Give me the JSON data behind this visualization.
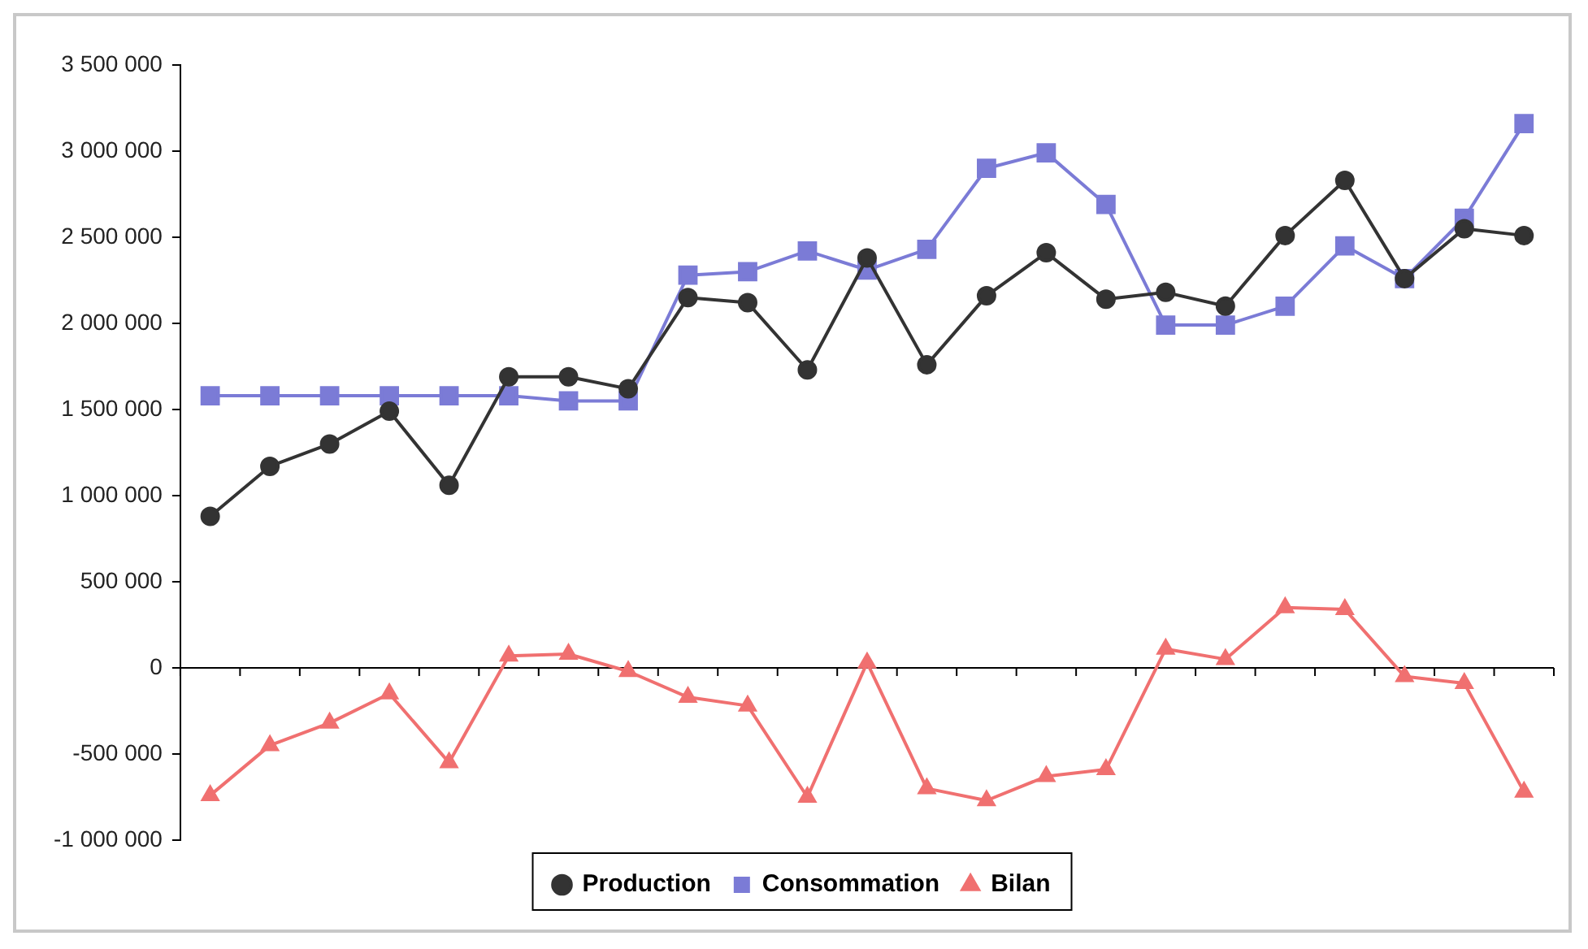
{
  "chart_data": {
    "type": "line",
    "categories": [
      null,
      null,
      null,
      null,
      null,
      null,
      null,
      null,
      null,
      null,
      null,
      null,
      null,
      null,
      null,
      null,
      null,
      null,
      null,
      null,
      null,
      null,
      null
    ],
    "series": [
      {
        "name": "Production",
        "color": "#333333",
        "marker": "circle",
        "values": [
          880000,
          1170000,
          1300000,
          1490000,
          1060000,
          1690000,
          1690000,
          1620000,
          2150000,
          2120000,
          1730000,
          2380000,
          1760000,
          2160000,
          2410000,
          2140000,
          2180000,
          2100000,
          2510000,
          2830000,
          2260000,
          2550000,
          2510000
        ]
      },
      {
        "name": "Consommation",
        "color": "#7b7bd6",
        "marker": "square",
        "values": [
          1580000,
          1580000,
          1580000,
          1580000,
          1580000,
          1580000,
          1550000,
          1550000,
          2280000,
          2300000,
          2420000,
          2310000,
          2430000,
          2900000,
          2990000,
          2690000,
          1990000,
          1990000,
          2100000,
          2450000,
          2260000,
          2610000,
          3160000
        ]
      },
      {
        "name": "Bilan",
        "color": "#f07070",
        "marker": "triangle",
        "values": [
          -740000,
          -450000,
          -320000,
          -150000,
          -550000,
          70000,
          80000,
          -20000,
          -170000,
          -220000,
          -750000,
          30000,
          -700000,
          -770000,
          -630000,
          -590000,
          110000,
          50000,
          350000,
          340000,
          -50000,
          -90000,
          -720000
        ]
      }
    ],
    "ylim": [
      -1000000,
      3500000
    ],
    "yticks": [
      {
        "value": -1000000,
        "label": "-1 000 000"
      },
      {
        "value": -500000,
        "label": "-500 000"
      },
      0,
      {
        "value": 500000,
        "label": "500 000"
      },
      {
        "value": 1000000,
        "label": "1 000 000"
      },
      {
        "value": 1500000,
        "label": "1 500 000"
      },
      {
        "value": 2000000,
        "label": "2 000 000"
      },
      {
        "value": 2500000,
        "label": "2 500 000"
      },
      {
        "value": 3000000,
        "label": "3 000 000"
      },
      {
        "value": 3500000,
        "label": "3 500 000"
      }
    ],
    "tick_labels": "y",
    "legend": "bottom",
    "line_style": "solid"
  }
}
